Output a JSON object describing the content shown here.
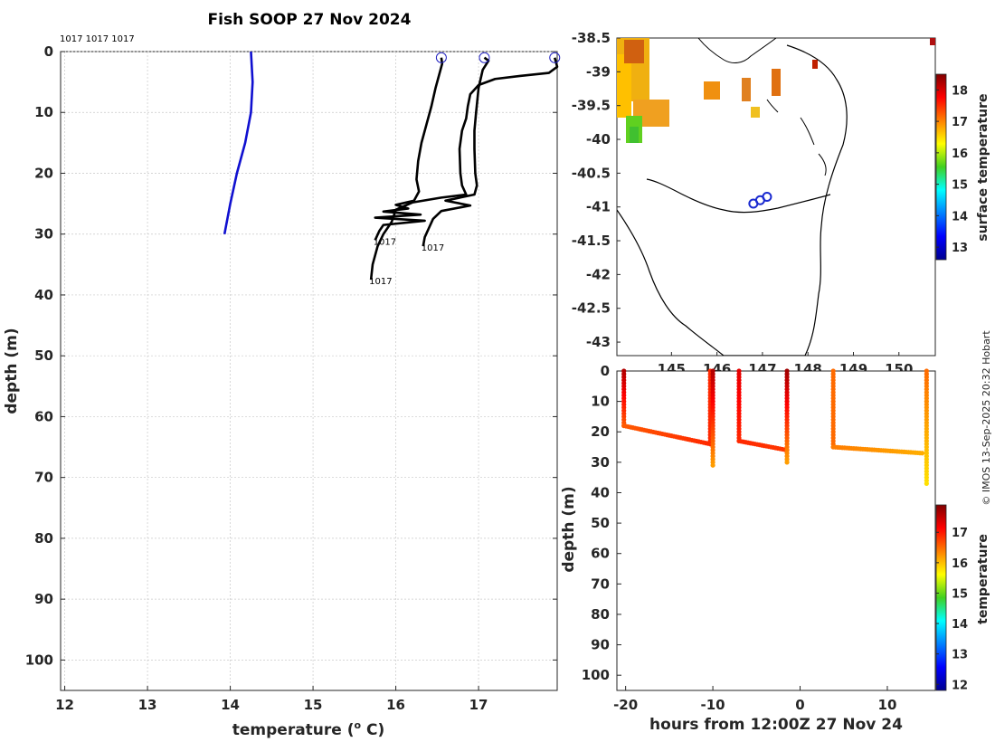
{
  "title": "Fish SOOP 27 Nov 2024",
  "credit": "© IMOS 13-Sep-2025 20:32 Hobart",
  "chart_data": [
    {
      "type": "line",
      "name": "profile-panel",
      "xlabel": "temperature (",
      "xlabel_unit": "o",
      "xlabel_tail": " C)",
      "ylabel": "depth (m)",
      "xlim": [
        11.95,
        17.95
      ],
      "ylim": [
        0,
        105
      ],
      "xticks": [
        12,
        13,
        14,
        15,
        16,
        17
      ],
      "yticks": [
        0,
        10,
        20,
        30,
        40,
        50,
        60,
        70,
        80,
        90,
        100
      ],
      "top_labels": "1017 1017 1017",
      "climatology": {
        "color": "#1010d0",
        "points": [
          [
            14.25,
            0
          ],
          [
            14.27,
            5
          ],
          [
            14.25,
            10
          ],
          [
            14.18,
            15
          ],
          [
            14.08,
            20
          ],
          [
            14.0,
            25
          ],
          [
            13.93,
            30
          ]
        ]
      },
      "profiles": [
        {
          "label": "1017",
          "surface_temp": 16.55,
          "points": [
            [
              16.55,
              1
            ],
            [
              16.56,
              2
            ],
            [
              16.52,
              4
            ],
            [
              16.48,
              6
            ],
            [
              16.43,
              9
            ],
            [
              16.37,
              12
            ],
            [
              16.31,
              15
            ],
            [
              16.27,
              18
            ],
            [
              16.25,
              21
            ],
            [
              16.28,
              23
            ],
            [
              16.22,
              24.5
            ],
            [
              16.0,
              25.2
            ],
            [
              16.15,
              25.8
            ],
            [
              15.85,
              26.3
            ],
            [
              16.3,
              26.8
            ],
            [
              15.75,
              27.3
            ],
            [
              16.35,
              27.8
            ],
            [
              15.85,
              28.5
            ],
            [
              15.8,
              29.5
            ],
            [
              15.75,
              31
            ]
          ]
        },
        {
          "label": "1017",
          "surface_temp": 17.07,
          "points": [
            [
              17.07,
              1
            ],
            [
              17.12,
              1.5
            ],
            [
              17.05,
              3
            ],
            [
              17.0,
              6
            ],
            [
              16.97,
              10
            ],
            [
              16.95,
              13
            ],
            [
              16.95,
              16
            ],
            [
              16.96,
              20
            ],
            [
              16.98,
              22
            ],
            [
              16.95,
              23.5
            ],
            [
              16.6,
              24.5
            ],
            [
              16.9,
              25.3
            ],
            [
              16.55,
              26.2
            ],
            [
              16.45,
              27.5
            ],
            [
              16.4,
              29
            ],
            [
              16.35,
              30.5
            ],
            [
              16.33,
              32
            ]
          ]
        },
        {
          "label": "1017",
          "surface_temp": 17.92,
          "points": [
            [
              17.92,
              1
            ],
            [
              17.95,
              2.5
            ],
            [
              17.85,
              3.5
            ],
            [
              17.5,
              4
            ],
            [
              17.2,
              4.5
            ],
            [
              17.0,
              5.5
            ],
            [
              16.9,
              7
            ],
            [
              16.87,
              9
            ],
            [
              16.85,
              11
            ],
            [
              16.8,
              13
            ],
            [
              16.77,
              16
            ],
            [
              16.78,
              20
            ],
            [
              16.8,
              22
            ],
            [
              16.85,
              23.5
            ],
            [
              16.55,
              24
            ],
            [
              16.2,
              24.8
            ],
            [
              16.0,
              26
            ],
            [
              15.95,
              28
            ],
            [
              15.85,
              30
            ],
            [
              15.78,
              32
            ],
            [
              15.72,
              35
            ],
            [
              15.7,
              37.5
            ]
          ]
        }
      ],
      "profile_color": "#000000",
      "end_labels": [
        "1017",
        "1017",
        "1017"
      ]
    },
    {
      "type": "heatmap",
      "name": "map-panel",
      "colorbar_label": "surface temperature",
      "colorbar_ticks": [
        13,
        14,
        15,
        16,
        17,
        18
      ],
      "colorbar_range": [
        12.6,
        18.5
      ],
      "xlim": [
        143.8,
        150.8
      ],
      "ylim": [
        -43.2,
        -38.5
      ],
      "xticks": [
        145,
        146,
        147,
        148,
        149,
        150
      ],
      "yticks": [
        -38.5,
        -39,
        -39.5,
        -40,
        -40.5,
        -41,
        -41.5,
        -42,
        -42.5,
        -43
      ],
      "markers": [
        [
          146.8,
          -40.95
        ],
        [
          146.95,
          -40.9
        ],
        [
          147.1,
          -40.85
        ]
      ],
      "marker_color": "#1a2ad0"
    },
    {
      "type": "scatter",
      "name": "section-panel",
      "xlabel": "hours from 12:00Z 27 Nov 24",
      "ylabel": "depth (m)",
      "xlim": [
        -21,
        15.5
      ],
      "ylim": [
        0,
        105
      ],
      "xticks": [
        -20,
        -10,
        0,
        10
      ],
      "yticks": [
        0,
        10,
        20,
        30,
        40,
        50,
        60,
        70,
        80,
        90,
        100
      ],
      "colorbar_label": "temperature",
      "colorbar_ticks": [
        12,
        13,
        14,
        15,
        16,
        17
      ],
      "colorbar_range": [
        11.8,
        17.9
      ]
    }
  ]
}
